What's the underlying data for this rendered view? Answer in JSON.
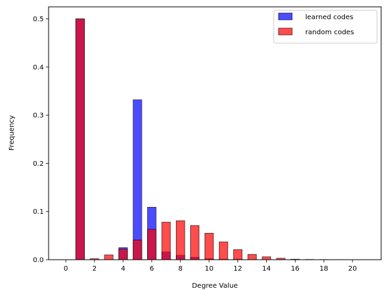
{
  "chart_data": {
    "type": "bar",
    "xlabel": "Degree Value",
    "ylabel": "Frequency",
    "xlim": [
      -1.2,
      22.0
    ],
    "ylim": [
      0,
      0.525
    ],
    "xticks": [
      "0",
      "2",
      "4",
      "6",
      "8",
      "10",
      "12",
      "14",
      "16",
      "18",
      "20"
    ],
    "yticks": [
      "0.0",
      "0.1",
      "0.2",
      "0.3",
      "0.4",
      "0.5"
    ],
    "legend": "top-right",
    "series": [
      {
        "name": "learned codes",
        "color": "#0000ff",
        "x": [
          0,
          1,
          2,
          3,
          4,
          5,
          6,
          7,
          8,
          9,
          10,
          11,
          12,
          13,
          14,
          15,
          16,
          17,
          18,
          19,
          20
        ],
        "values": [
          0,
          0.5,
          0,
          0,
          0.025,
          0.332,
          0.109,
          0.016,
          0.009,
          0.005,
          0.002,
          0.001,
          0.001,
          0,
          0,
          0,
          0,
          0,
          0,
          0,
          0
        ]
      },
      {
        "name": "random codes",
        "color": "#ff0000",
        "x": [
          1,
          2,
          3,
          4,
          5,
          6,
          7,
          8,
          9,
          10,
          11,
          12,
          13,
          14,
          15,
          16,
          17,
          18,
          19,
          20,
          21
        ],
        "values": [
          0.5,
          0.002,
          0.01,
          0.022,
          0.041,
          0.063,
          0.078,
          0.081,
          0.071,
          0.055,
          0.037,
          0.021,
          0.011,
          0.006,
          0.003,
          0.001,
          0.0005,
          0.0003,
          0.0002,
          0.0001,
          0.0001
        ]
      }
    ]
  }
}
